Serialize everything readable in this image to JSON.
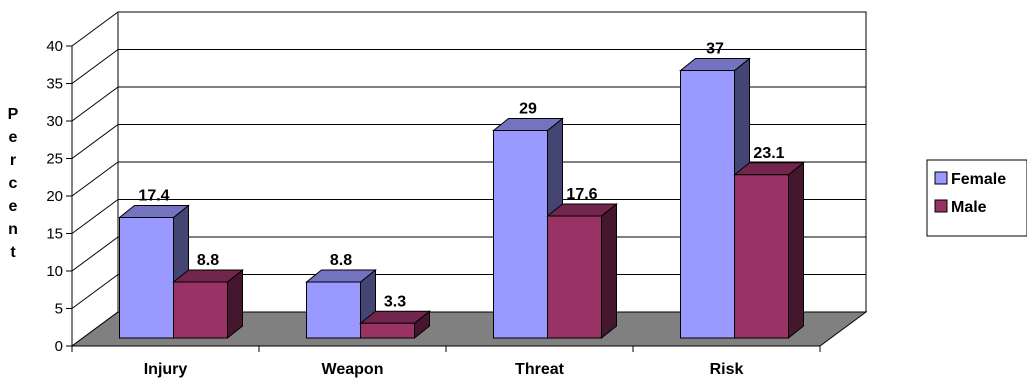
{
  "chart_data": {
    "type": "bar",
    "categories": [
      "Injury",
      "Weapon",
      "Threat",
      "Risk"
    ],
    "series": [
      {
        "name": "Female",
        "values": [
          17.4,
          8.8,
          29,
          37
        ],
        "color": "#9999ff"
      },
      {
        "name": "Male",
        "values": [
          8.8,
          3.3,
          17.6,
          23.1
        ],
        "color": "#993366"
      }
    ],
    "ylabel": "Percent",
    "ylim": [
      0,
      40
    ],
    "yticks": [
      0,
      5,
      10,
      15,
      20,
      25,
      30,
      35,
      40
    ],
    "grid": true,
    "legend": "right",
    "floor_color": "#808080"
  }
}
